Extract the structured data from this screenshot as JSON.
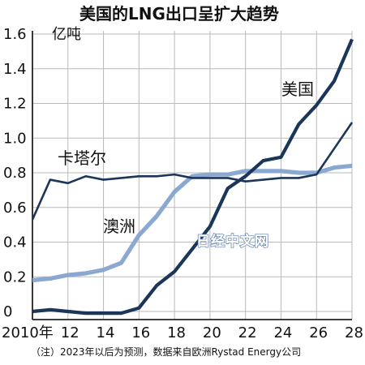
{
  "chart_data": {
    "type": "line",
    "title": "美国的LNG出口呈扩大趋势",
    "unit_label": "亿吨",
    "note": "（注）2023年以后为预测，数据来自欧洲Rystad Energy公司",
    "watermark": "日经中文网",
    "x_tick_labels": [
      "2010年",
      "12",
      "14",
      "16",
      "18",
      "20",
      "22",
      "24",
      "26",
      "28"
    ],
    "y_tick_labels": [
      "0",
      "0.2",
      "0.4",
      "0.6",
      "0.8",
      "1.0",
      "1.2",
      "1.4",
      "1.6"
    ],
    "xlim": [
      2010,
      2028
    ],
    "ylim": [
      0,
      1.6
    ],
    "grid": true,
    "series": [
      {
        "name": "美国",
        "color": "#1b3658",
        "x": [
          2010,
          2011,
          2012,
          2013,
          2014,
          2015,
          2016,
          2017,
          2018,
          2019,
          2020,
          2021,
          2022,
          2023,
          2024,
          2025,
          2026,
          2027,
          2028
        ],
        "values": [
          0.0,
          0.01,
          0.0,
          -0.01,
          -0.01,
          -0.01,
          0.02,
          0.15,
          0.23,
          0.36,
          0.49,
          0.71,
          0.78,
          0.87,
          0.89,
          1.08,
          1.19,
          1.33,
          1.57
        ]
      },
      {
        "name": "卡塔尔",
        "color": "#1b3658",
        "x": [
          2010,
          2011,
          2012,
          2013,
          2014,
          2015,
          2016,
          2017,
          2018,
          2019,
          2020,
          2021,
          2022,
          2023,
          2024,
          2025,
          2026,
          2027,
          2028
        ],
        "values": [
          0.53,
          0.76,
          0.74,
          0.78,
          0.76,
          0.77,
          0.78,
          0.78,
          0.79,
          0.77,
          0.77,
          0.77,
          0.75,
          0.76,
          0.77,
          0.77,
          0.79,
          0.94,
          1.09
        ]
      },
      {
        "name": "澳洲",
        "color": "#8aa8d0",
        "x": [
          2010,
          2011,
          2012,
          2013,
          2014,
          2015,
          2016,
          2017,
          2018,
          2019,
          2020,
          2021,
          2022,
          2023,
          2024,
          2025,
          2026,
          2027,
          2028
        ],
        "values": [
          0.18,
          0.19,
          0.21,
          0.22,
          0.24,
          0.28,
          0.44,
          0.55,
          0.69,
          0.78,
          0.79,
          0.79,
          0.81,
          0.81,
          0.81,
          0.8,
          0.8,
          0.83,
          0.84
        ]
      }
    ]
  }
}
